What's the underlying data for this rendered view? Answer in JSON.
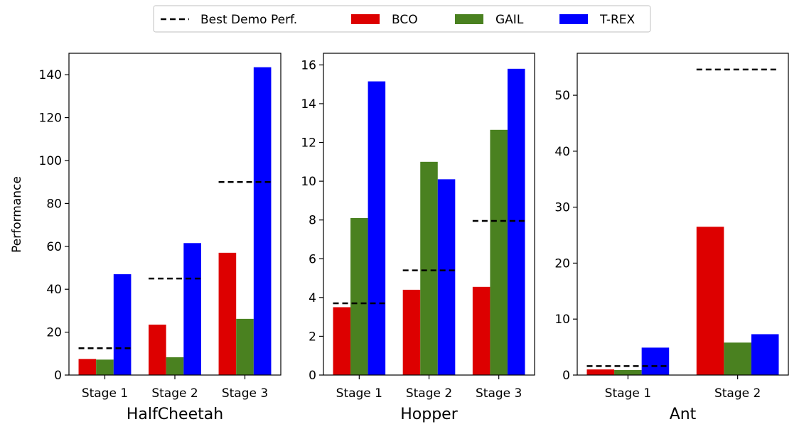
{
  "legend": {
    "placement": "top-center",
    "entries": [
      {
        "label": "Best Demo Perf.",
        "kind": "dashed-line",
        "color": "#000000"
      },
      {
        "label": "BCO",
        "kind": "patch",
        "color": "#dd0000"
      },
      {
        "label": "GAIL",
        "kind": "patch",
        "color": "#4a8120"
      },
      {
        "label": "T-REX",
        "kind": "patch",
        "color": "#0000ff"
      }
    ]
  },
  "chart_data": [
    {
      "type": "bar",
      "title": "",
      "xlabel": "HalfCheetah",
      "ylabel": "Performance",
      "categories": [
        "Stage 1",
        "Stage 2",
        "Stage 3"
      ],
      "yticks": [
        0,
        20,
        40,
        60,
        80,
        100,
        120,
        140
      ],
      "ylim": [
        0,
        150
      ],
      "grid": false,
      "series": [
        {
          "name": "BCO",
          "color": "#dd0000",
          "values": [
            7.5,
            23.5,
            57
          ]
        },
        {
          "name": "GAIL",
          "color": "#4a8120",
          "values": [
            7.2,
            8.3,
            26.2
          ]
        },
        {
          "name": "T-REX",
          "color": "#0000ff",
          "values": [
            47,
            61.5,
            143.5
          ]
        }
      ],
      "best_demo": [
        12.5,
        45,
        90
      ]
    },
    {
      "type": "bar",
      "title": "",
      "xlabel": "Hopper",
      "ylabel": "",
      "categories": [
        "Stage 1",
        "Stage 2",
        "Stage 3"
      ],
      "yticks": [
        0,
        2,
        4,
        6,
        8,
        10,
        12,
        14,
        16
      ],
      "ylim": [
        0,
        16.6
      ],
      "grid": false,
      "series": [
        {
          "name": "BCO",
          "color": "#dd0000",
          "values": [
            3.5,
            4.4,
            4.55
          ]
        },
        {
          "name": "GAIL",
          "color": "#4a8120",
          "values": [
            8.1,
            11.0,
            12.65
          ]
        },
        {
          "name": "T-REX",
          "color": "#0000ff",
          "values": [
            15.15,
            10.1,
            15.8
          ]
        }
      ],
      "best_demo": [
        3.7,
        5.4,
        7.95
      ]
    },
    {
      "type": "bar",
      "title": "",
      "xlabel": "Ant",
      "ylabel": "",
      "categories": [
        "Stage 1",
        "Stage 2"
      ],
      "yticks": [
        0,
        10,
        20,
        30,
        40,
        50
      ],
      "ylim": [
        0,
        57.5
      ],
      "grid": false,
      "series": [
        {
          "name": "BCO",
          "color": "#dd0000",
          "values": [
            1.0,
            26.5
          ]
        },
        {
          "name": "GAIL",
          "color": "#4a8120",
          "values": [
            0.9,
            5.8
          ]
        },
        {
          "name": "T-REX",
          "color": "#0000ff",
          "values": [
            4.9,
            7.3
          ]
        }
      ],
      "best_demo": [
        1.6,
        54.6
      ]
    }
  ]
}
